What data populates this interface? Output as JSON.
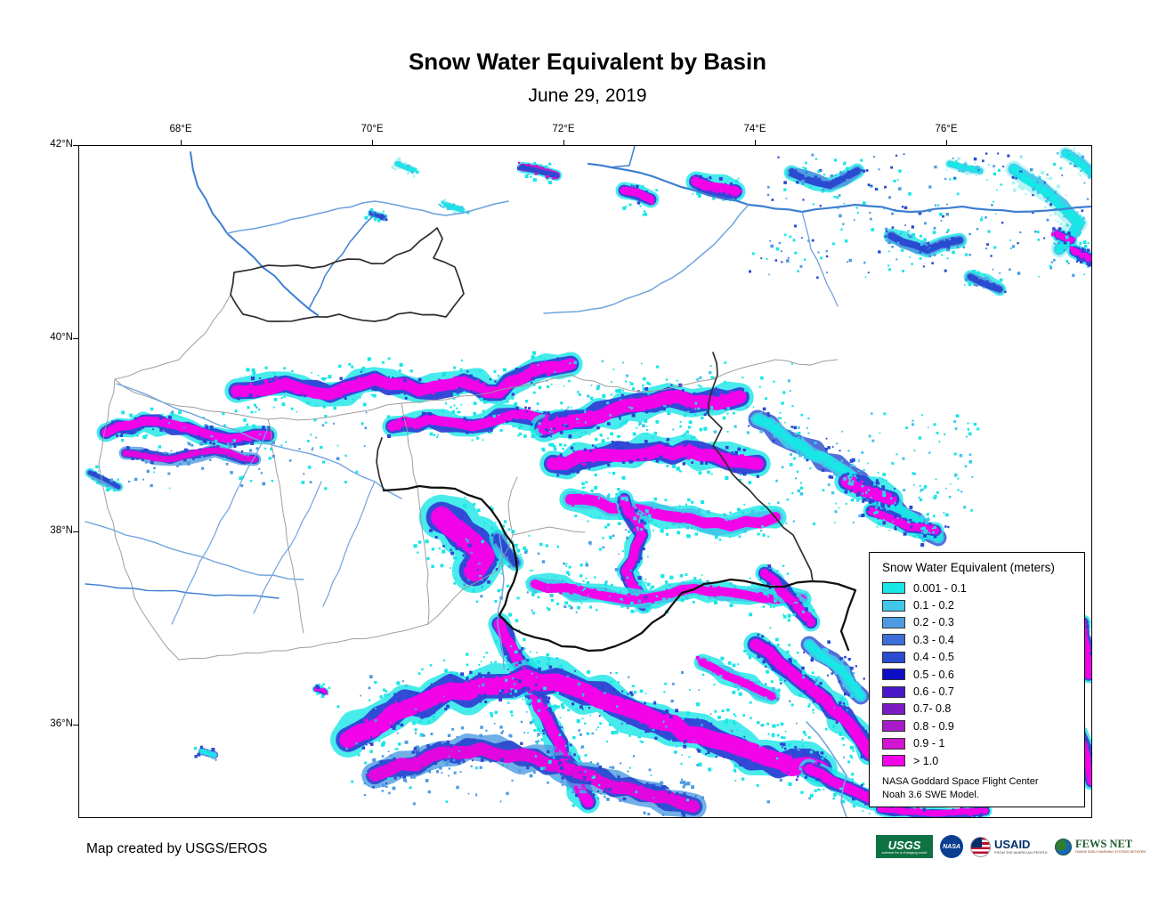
{
  "title": "Snow Water Equivalent by Basin",
  "subtitle": "June 29, 2019",
  "map": {
    "x_axis_labels": [
      "68°E",
      "70°E",
      "72°E",
      "74°E",
      "76°E"
    ],
    "y_axis_labels": [
      "42°N",
      "40°N",
      "38°N",
      "36°N"
    ]
  },
  "legend": {
    "title": "Snow Water Equivalent (meters)",
    "classes": [
      {
        "label": "0.001 - 0.1",
        "color": "#19E6E6"
      },
      {
        "label": "0.1 - 0.2",
        "color": "#41C7EA"
      },
      {
        "label": "0.2 - 0.3",
        "color": "#4E9BE2"
      },
      {
        "label": "0.3 - 0.4",
        "color": "#3E6ED8"
      },
      {
        "label": "0.4 - 0.5",
        "color": "#2A4BD0"
      },
      {
        "label": "0.5 - 0.6",
        "color": "#0D0DC8"
      },
      {
        "label": "0.6 - 0.7",
        "color": "#4A17C8"
      },
      {
        "label": "0.7- 0.8",
        "color": "#7C1AC4"
      },
      {
        "label": "0.8 - 0.9",
        "color": "#A81BC8"
      },
      {
        "label": "0.9 - 1",
        "color": "#D215D2"
      },
      {
        "label": "> 1.0",
        "color": "#F203E8"
      }
    ],
    "note_lines": [
      "NASA Goddard Space Flight Center",
      "Noah 3.6 SWE Model."
    ]
  },
  "footer": {
    "credit": "Map created by USGS/EROS"
  },
  "logos": {
    "usgs": {
      "label": "USGS",
      "tagline": "science for a changing world"
    },
    "nasa": {
      "label": "NASA"
    },
    "usaid": {
      "label": "USAID",
      "tagline": "FROM THE AMERICAN PEOPLE"
    },
    "fewsnet": {
      "label": "FEWS NET",
      "tagline": "FAMINE EARLY WARNING SYSTEMS NETWORK"
    }
  }
}
